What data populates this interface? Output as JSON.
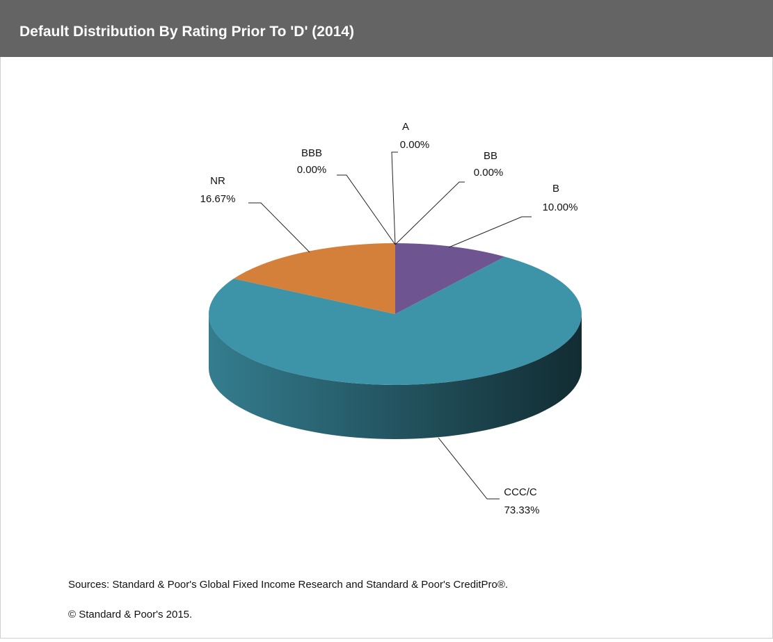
{
  "chart_data": {
    "type": "pie3d",
    "title": "Default Distribution  By Rating Prior To 'D' (2014)",
    "categories": [
      "A",
      "BB",
      "B",
      "CCC/C",
      "NR",
      "BBB"
    ],
    "values": [
      0,
      0,
      10,
      73.33,
      16.67,
      0
    ],
    "value_labels": [
      "0.00%",
      "0.00%",
      "10.00%",
      "73.33%",
      "16.67%",
      "0.00%"
    ],
    "colors": [
      "#5b7fb8",
      "#9bbb59",
      "#6e5591",
      "#3d93a8",
      "#d4803a",
      "#a94f4f"
    ],
    "source": "Sources: Standard & Poor's Global Fixed Income Research and Standard & Poor's CreditPro®.",
    "copyright": "© Standard & Poor's 2015."
  }
}
